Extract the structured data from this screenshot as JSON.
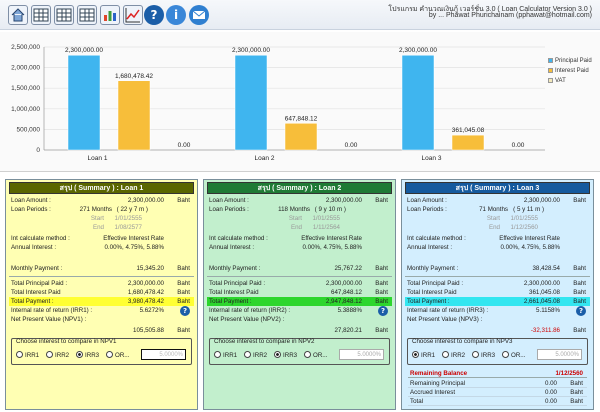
{
  "toolbar": {
    "buttons": [
      {
        "icon": "home-icon"
      },
      {
        "icon": "table-icon"
      },
      {
        "icon": "table-icon"
      },
      {
        "icon": "table-icon"
      },
      {
        "icon": "bar-chart-icon"
      },
      {
        "icon": "line-chart-icon"
      },
      {
        "icon": "help-icon"
      },
      {
        "icon": "info-icon"
      },
      {
        "icon": "email-icon"
      }
    ],
    "title_line1": "โปรแกรม คำนวณเงินกู้ เวอร์ชั่น 3.0 ( Loan Calculator Version 3.0 )",
    "title_line2": "by ... Phawat Phurichainam (pphawat@hotmail.com)"
  },
  "chart_data": {
    "type": "bar",
    "categories": [
      "Loan 1",
      "Loan 2",
      "Loan 3"
    ],
    "series": [
      {
        "name": "Principal Paid",
        "values": [
          2300000,
          2300000,
          2300000
        ],
        "labels": [
          "2,300,000.00",
          "2,300,000.00",
          "2,300,000.00"
        ],
        "color": "#3fb5ef"
      },
      {
        "name": "Interest Paid",
        "values": [
          1680478.42,
          647848.12,
          361045.08
        ],
        "labels": [
          "1,680,478.42",
          "647,848.12",
          "361,045.08"
        ],
        "color": "#f7be3a"
      },
      {
        "name": "VAT",
        "values": [
          0,
          0,
          0
        ],
        "labels": [
          "0.00",
          "0.00",
          "0.00"
        ],
        "color": "#f3e9bb"
      }
    ],
    "yticks": [
      "0",
      "500,000",
      "1,000,000",
      "1,500,000",
      "2,000,000",
      "2,500,000"
    ],
    "ylim": [
      0,
      2500000
    ],
    "grid": true,
    "legend": "right"
  },
  "panels": [
    {
      "header": "สรุป ( Summary ) : Loan 1",
      "bg": "#ffffb3",
      "hdr_bg": "#5a6600",
      "total_hl": "#ffff33",
      "loan_amount_label": "Loan Amount :",
      "loan_amount": "2,300,000.00",
      "unit": "Baht",
      "loan_periods_label": "Loan Periods :",
      "loan_periods": "271 Months",
      "loan_periods_ym": "( 22 y 7 m )",
      "start_label": "Start",
      "start": "1/01/2555",
      "end_label": "End",
      "end": "1/08/2577",
      "method_label": "Int calculate method :",
      "method": "Effective Interest Rate",
      "annual_label": "Annual Interest :",
      "annual": "0.00%, 4.75%, 5.88%",
      "monthly_label": "Monthly Payment :",
      "monthly": "15,345.20",
      "tpp_label": "Total Principal Paid :",
      "tpp": "2,300,000.00",
      "tip_label": "Total Interest Paid",
      "tip": "1,680,478.42",
      "tp_label": "Total Payment :",
      "tp": "3,980,478.42",
      "irr_label": "Internal rate of return (IRR1) :",
      "irr": "5.6272%",
      "npv_label": "Net Present Value (NPV1) :",
      "npv": "105,505.88",
      "npv_box_label": "Choose interest to compare in NPV1",
      "radios": [
        "IRR1",
        "IRR2",
        "IRR3",
        "OR..."
      ],
      "selected": 2,
      "npv_rate": "5.0000%"
    },
    {
      "header": "สรุป ( Summary ) : Loan 2",
      "bg": "#c2efcd",
      "hdr_bg": "#1f7a35",
      "total_hl": "#2dd62d",
      "loan_amount_label": "Loan Amount :",
      "loan_amount": "2,300,000.00",
      "unit": "Baht",
      "loan_periods_label": "Loan Periods :",
      "loan_periods": "118 Months",
      "loan_periods_ym": "( 9 y 10 m )",
      "start_label": "Start",
      "start": "1/01/2555",
      "end_label": "End",
      "end": "1/11/2564",
      "method_label": "Int calculate method :",
      "method": "Effective Interest Rate",
      "annual_label": "Annual Interest :",
      "annual": "0.00%, 4.75%, 5.88%",
      "monthly_label": "Monthly Payment :",
      "monthly": "25,767.22",
      "tpp_label": "Total Principal Paid :",
      "tpp": "2,300,000.00",
      "tip_label": "Total Interest Paid",
      "tip": "647,848.12",
      "tp_label": "Total Payment :",
      "tp": "2,947,848.12",
      "irr_label": "Internal rate of return (IRR2) :",
      "irr": "5.3888%",
      "npv_label": "Net Present Value (NPV2) :",
      "npv": "27,820.21",
      "npv_box_label": "Choose interest to compare in NPV2",
      "radios": [
        "IRR1",
        "IRR2",
        "IRR3",
        "OR..."
      ],
      "selected": 2,
      "npv_rate": "5.0000%"
    },
    {
      "header": "สรุป ( Summary ) : Loan 3",
      "bg": "#d3eefe",
      "hdr_bg": "#155a9e",
      "total_hl": "#33e6f0",
      "loan_amount_label": "Loan Amount :",
      "loan_amount": "2,300,000.00",
      "unit": "Baht",
      "loan_periods_label": "Loan Periods :",
      "loan_periods": "71 Months",
      "loan_periods_ym": "( 5 y 11 m )",
      "start_label": "Start",
      "start": "1/01/2555",
      "end_label": "End",
      "end": "1/12/2560",
      "method_label": "Int calculate method :",
      "method": "Effective Interest Rate",
      "annual_label": "Annual Interest :",
      "annual": "0.00%, 4.75%, 5.88%",
      "monthly_label": "Monthly Payment :",
      "monthly": "38,428.54",
      "tpp_label": "Total Principal Paid :",
      "tpp": "2,300,000.00",
      "tip_label": "Total Interest Paid",
      "tip": "361,045.08",
      "tp_label": "Total Payment :",
      "tp": "2,661,045.08",
      "irr_label": "Internal rate of return (IRR3) :",
      "irr": "5.1158%",
      "npv_label": "Net Present Value (NPV3) :",
      "npv": "-32,311.86",
      "npv_box_label": "Choose interest to compare in NPV3",
      "radios": [
        "IRR1",
        "IRR2",
        "IRR3",
        "OR..."
      ],
      "selected": 0,
      "npv_rate": "5.0000%",
      "remaining": {
        "title": "Remaining Balance",
        "date": "1/12/2560",
        "color": "#cc0000",
        "rows": [
          {
            "label": "Remaining Principal",
            "value": "0.00",
            "unit": "Baht"
          },
          {
            "label": "Accrued Interest",
            "value": "0.00",
            "unit": "Baht"
          },
          {
            "label": "Total",
            "value": "0.00",
            "unit": "Baht"
          }
        ]
      }
    }
  ]
}
